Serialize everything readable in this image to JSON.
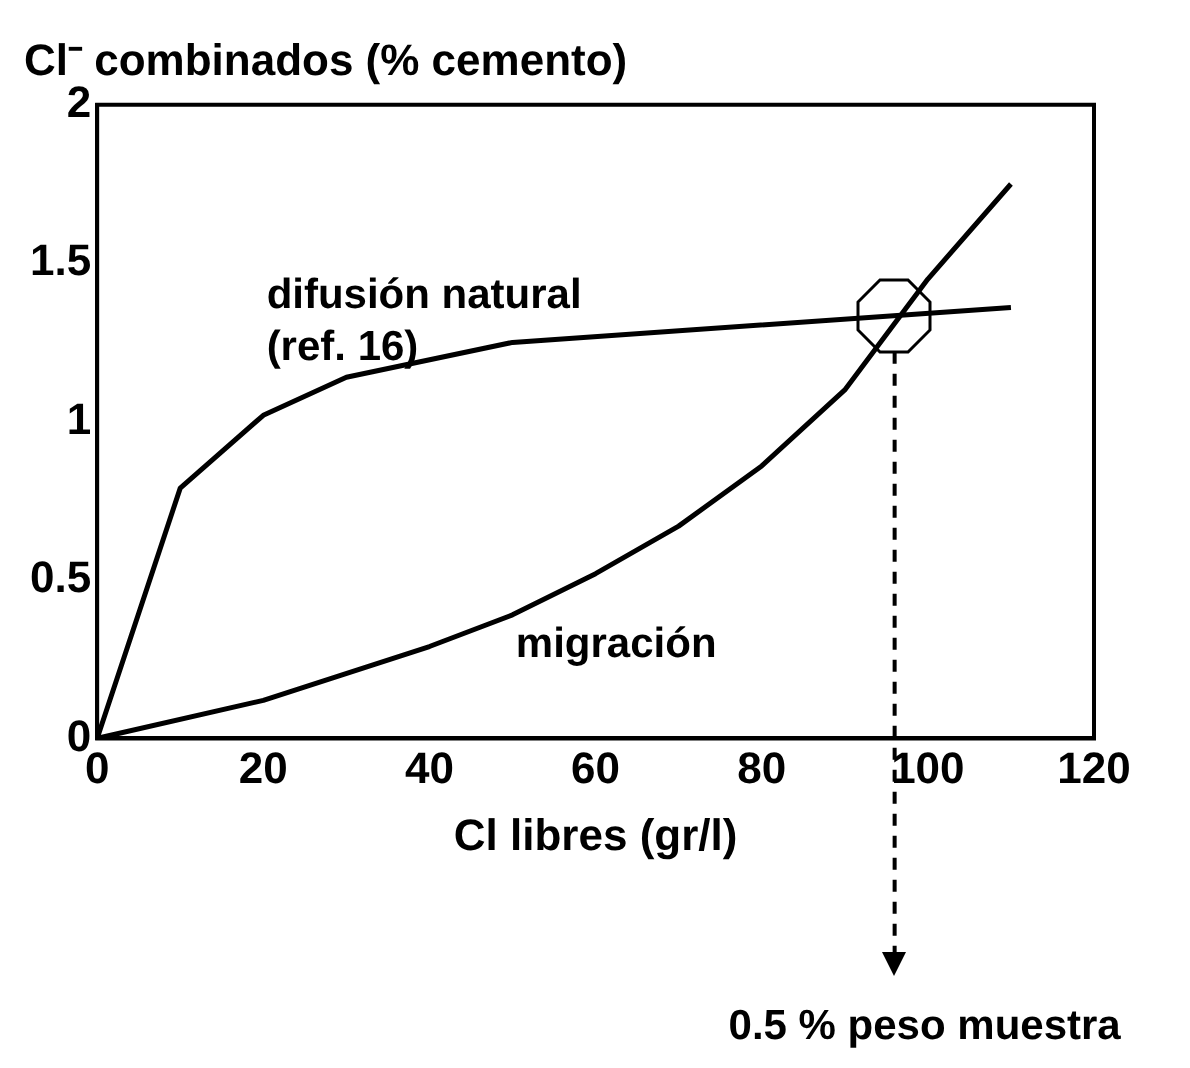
{
  "chart_data": {
    "type": "line",
    "title": "Cl⁻ combinados (% cemento)",
    "xlabel": "Cl libres (gr/l)",
    "xlim": [
      0,
      120
    ],
    "xticks": [
      0,
      20,
      40,
      60,
      80,
      100,
      120
    ],
    "ylim": [
      0,
      2
    ],
    "yticks": [
      0,
      0.5,
      1,
      1.5,
      2
    ],
    "grid": false,
    "legend": false,
    "marker": "none",
    "line_style": "solid",
    "series": [
      {
        "color": "#000000",
        "x": [
          0,
          10,
          20,
          30,
          50,
          110
        ],
        "values": [
          0,
          0.79,
          1.02,
          1.14,
          1.25,
          1.36
        ]
      },
      {
        "color": "#000000",
        "x": [
          0,
          20,
          40,
          50,
          60,
          70,
          80,
          90,
          100,
          110
        ],
        "values": [
          0,
          0.12,
          0.29,
          0.39,
          0.52,
          0.67,
          0.86,
          1.1,
          1.45,
          1.75
        ]
      }
    ],
    "annotations": [
      "difusión natural\n(ref. 16)",
      "migración"
    ],
    "ref_lines": [
      {
        "axis": "x",
        "value": 96,
        "label": "0.5 % peso muestra",
        "line_style": "dashed"
      }
    ]
  }
}
